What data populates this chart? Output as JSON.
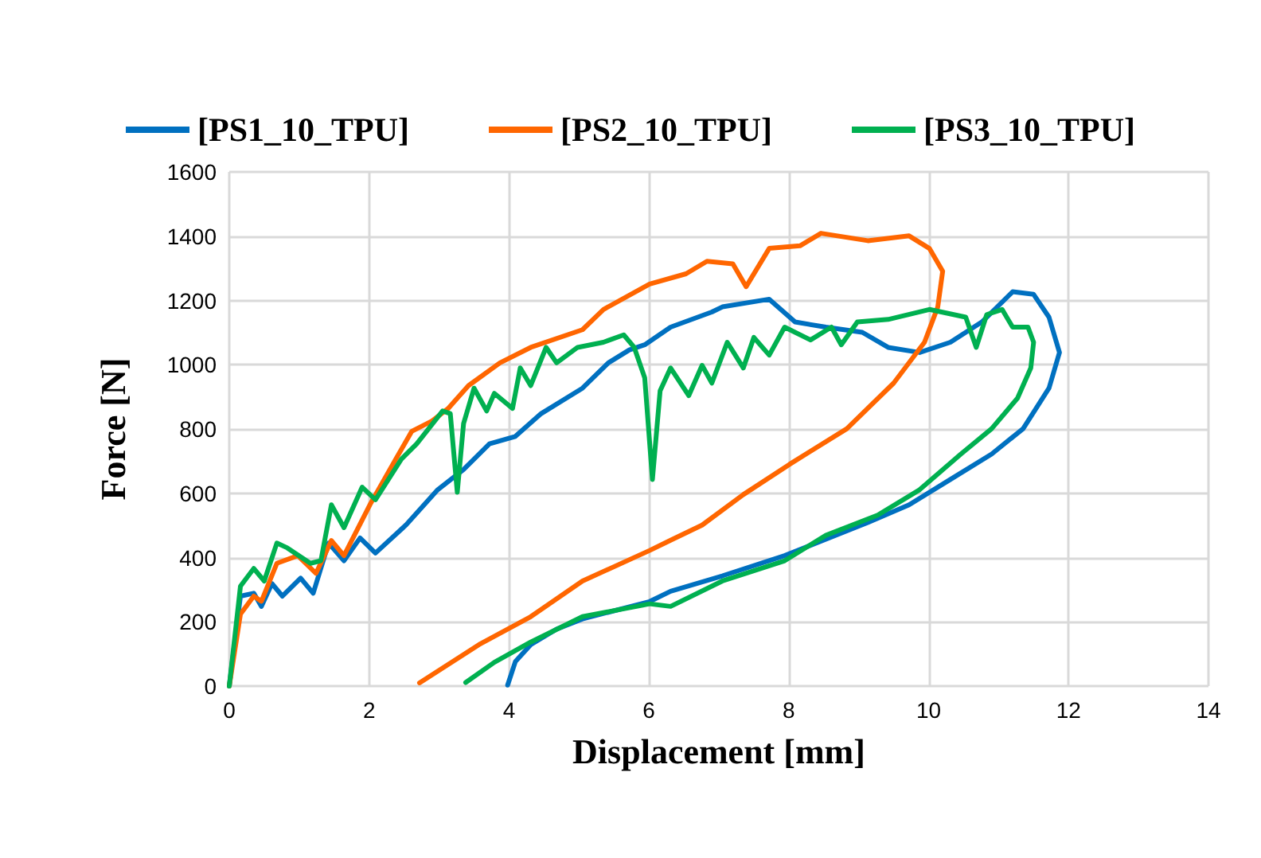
{
  "chart_data": {
    "type": "line",
    "xlabel": "Displacement [mm]",
    "ylabel": "Force [N]",
    "xlim": [
      0,
      14
    ],
    "xticks": [
      0,
      2,
      4,
      6,
      8,
      10,
      12,
      14
    ],
    "ylim": [
      0,
      1600
    ],
    "yticks": [
      0,
      200,
      400,
      600,
      800,
      1000,
      1200,
      1400,
      1600
    ],
    "grid": true,
    "legend": "top",
    "marker": "none",
    "line_style": "solid",
    "series": [
      {
        "name": "[PS1_10_TPU]",
        "color": "#0070c0",
        "x": [
          0,
          0.16,
          0.35,
          0.46,
          0.61,
          0.76,
          1.02,
          1.2,
          1.42,
          1.64,
          1.87,
          2.09,
          2.53,
          2.98,
          3.35,
          3.72,
          4.09,
          4.46,
          5.05,
          5.42,
          5.72,
          5.94,
          6.31,
          6.9,
          7.05,
          7.72,
          8.09,
          8.53,
          9.05,
          9.42,
          9.87,
          10.31,
          10.76,
          11.2,
          11.5,
          11.72,
          11.87,
          11.72,
          11.35,
          10.9,
          10.31,
          9.72,
          9.13,
          7.94,
          7.05,
          6.31,
          6.01,
          5.05,
          4.68,
          4.31,
          4.09,
          3.98
        ],
        "values": [
          0,
          280,
          289,
          248,
          319,
          280,
          336,
          289,
          445,
          390,
          461,
          414,
          502,
          611,
          674,
          754,
          777,
          848,
          927,
          1006,
          1046,
          1062,
          1117,
          1164,
          1180,
          1204,
          1133,
          1117,
          1101,
          1054,
          1038,
          1070,
          1133,
          1227,
          1219,
          1148,
          1038,
          927,
          801,
          722,
          643,
          564,
          509,
          406,
          343,
          295,
          263,
          209,
          177,
          129,
          76,
          3
        ]
      },
      {
        "name": "[PS2_10_TPU]",
        "color": "#ff6600",
        "x": [
          0,
          0.16,
          0.35,
          0.46,
          0.68,
          0.98,
          1.24,
          1.46,
          1.64,
          2.01,
          2.38,
          2.61,
          2.9,
          3.13,
          3.42,
          3.87,
          4.31,
          5.05,
          5.35,
          6.01,
          6.53,
          6.83,
          7.2,
          7.39,
          7.72,
          8.16,
          8.46,
          9.13,
          9.72,
          10.01,
          10.2,
          10.13,
          9.94,
          9.5,
          8.83,
          8.01,
          7.35,
          6.76,
          6.31,
          6.01,
          5.05,
          4.31,
          3.57,
          2.72
        ],
        "values": [
          0,
          224,
          280,
          264,
          382,
          406,
          351,
          453,
          406,
          564,
          706,
          793,
          825,
          864,
          935,
          1006,
          1054,
          1109,
          1172,
          1251,
          1283,
          1322,
          1314,
          1243,
          1362,
          1370,
          1409,
          1386,
          1401,
          1362,
          1291,
          1180,
          1070,
          943,
          801,
          690,
          596,
          501,
          454,
          422,
          327,
          216,
          129,
          10
        ]
      },
      {
        "name": "[PS3_10_TPU]",
        "color": "#00b050",
        "x": [
          0,
          0.16,
          0.35,
          0.5,
          0.68,
          0.83,
          1.16,
          1.31,
          1.46,
          1.64,
          1.9,
          2.09,
          2.46,
          2.68,
          3.05,
          3.16,
          3.26,
          3.35,
          3.5,
          3.68,
          3.79,
          4.05,
          4.16,
          4.31,
          4.53,
          4.68,
          4.98,
          5.35,
          5.64,
          5.79,
          5.94,
          6.05,
          6.16,
          6.31,
          6.57,
          6.76,
          6.9,
          7.12,
          7.35,
          7.5,
          7.72,
          7.94,
          8.31,
          8.61,
          8.75,
          8.98,
          9.42,
          10.01,
          10.53,
          10.68,
          10.83,
          11.05,
          11.2,
          11.42,
          11.5,
          11.46,
          11.27,
          10.9,
          10.46,
          9.87,
          9.27,
          8.53,
          7.94,
          7.05,
          6.31,
          6.01,
          5.05,
          4.31,
          3.79,
          3.38
        ],
        "values": [
          0,
          311,
          366,
          327,
          445,
          430,
          382,
          390,
          564,
          493,
          619,
          580,
          706,
          754,
          856,
          848,
          603,
          817,
          927,
          856,
          911,
          864,
          990,
          935,
          1054,
          1006,
          1054,
          1070,
          1093,
          1054,
          959,
          643,
          919,
          990,
          904,
          998,
          943,
          1070,
          990,
          1085,
          1030,
          1117,
          1077,
          1117,
          1062,
          1133,
          1141,
          1172,
          1148,
          1054,
          1156,
          1172,
          1117,
          1117,
          1070,
          990,
          896,
          801,
          722,
          611,
          532,
          469,
          390,
          327,
          248,
          256,
          216,
          137,
          74,
          11
        ]
      }
    ]
  }
}
